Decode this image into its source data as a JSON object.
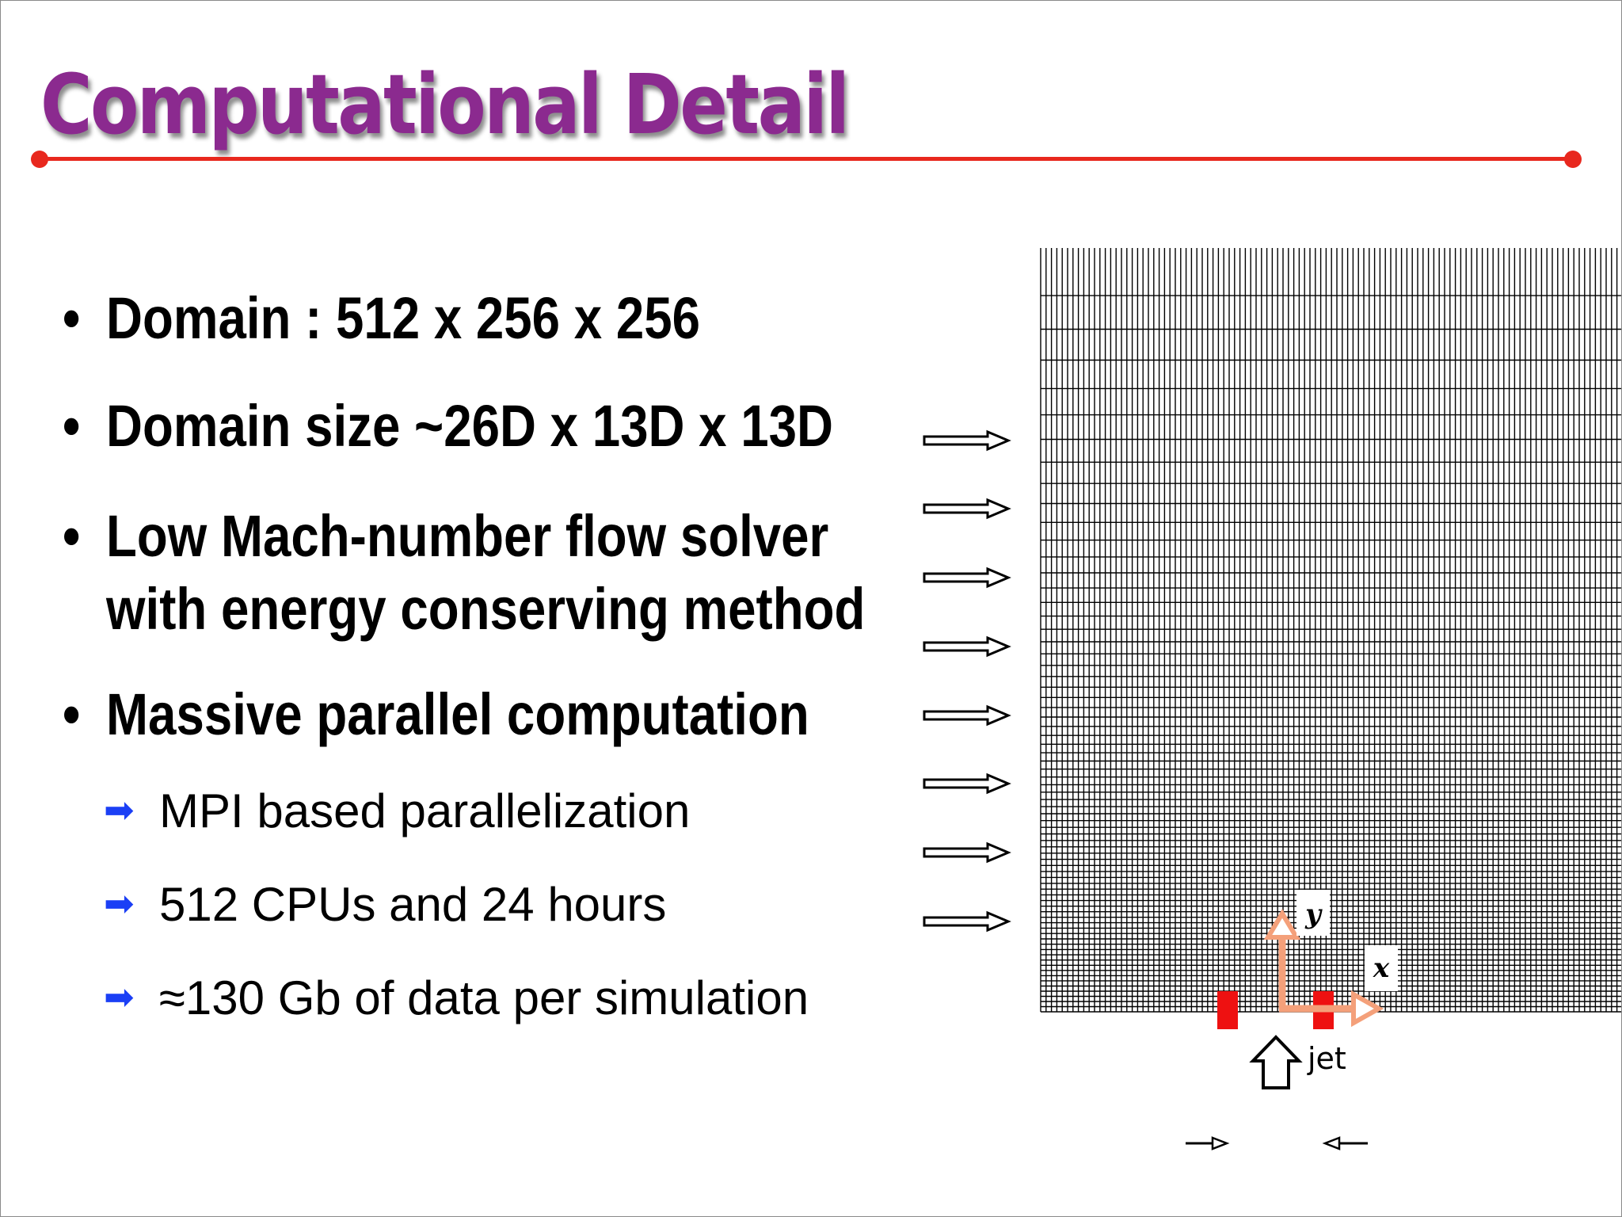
{
  "slide": {
    "title": "Computational Detail",
    "bullets": [
      {
        "lines": [
          "Domain : 512 x 256 x 256"
        ]
      },
      {
        "lines": [
          "Domain size ~26D x 13D x 13D"
        ]
      },
      {
        "lines": [
          "Low Mach-number flow solver",
          "with energy conserving method"
        ]
      },
      {
        "lines": [
          "Massive parallel computation"
        ]
      }
    ],
    "sub_bullets": [
      "MPI based parallelization",
      "512 CPUs and 24 hours",
      "≈130 Gb of data per simulation"
    ]
  },
  "diagram": {
    "axis_x_label": "x",
    "axis_y_label": "y",
    "jet_label": "jet",
    "colors": {
      "title": "#8b2a8f",
      "rule": "#e8281e",
      "sub_arrow": "#1b3ff5",
      "jet_block": "#ee1111",
      "axes": "#f4a07a"
    }
  }
}
